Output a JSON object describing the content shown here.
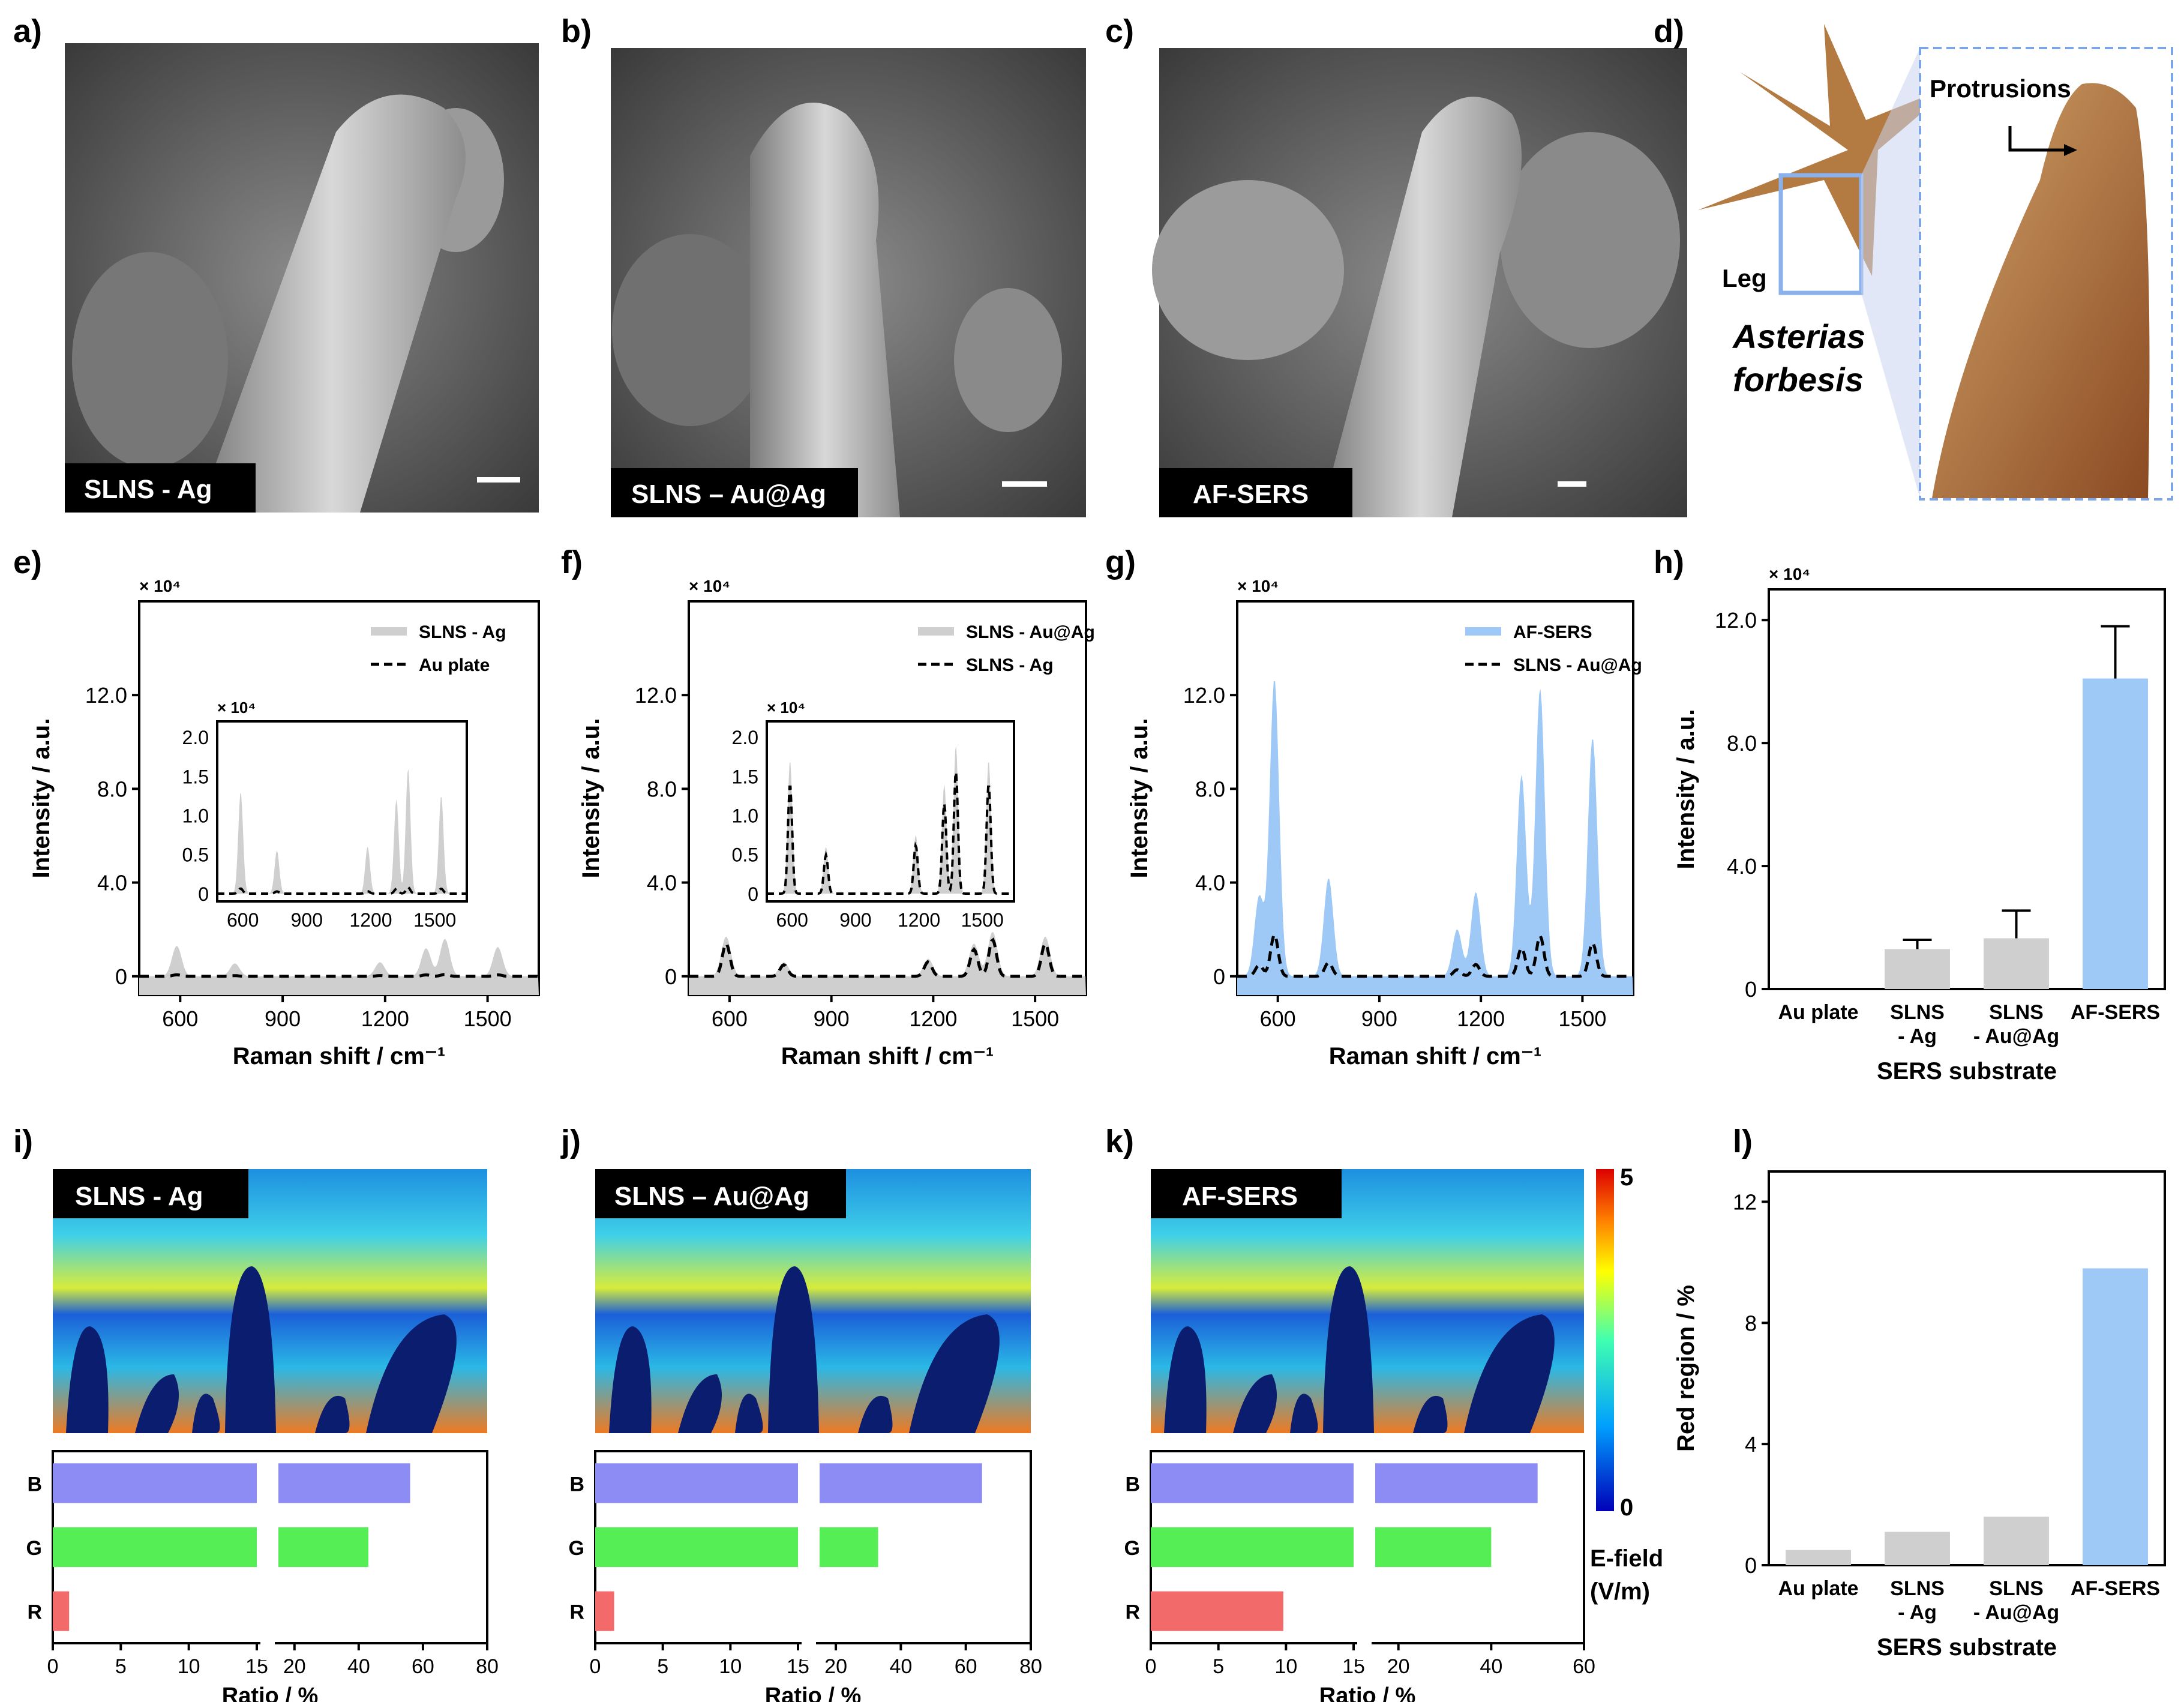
{
  "panel_letters": {
    "a": "a)",
    "b": "b)",
    "c": "c)",
    "d": "d)",
    "e": "e)",
    "f": "f)",
    "g": "g)",
    "h": "h)",
    "i": "i)",
    "j": "j)",
    "k": "k)",
    "l": "l)"
  },
  "sem_labels": {
    "a": "SLNS - Ag",
    "b": "SLNS – Au@Ag",
    "c": "AF-SERS"
  },
  "starfish": {
    "protrusions": "Protrusions",
    "leg": "Leg",
    "species_line1": "Asterias",
    "species_line2": "forbesis"
  },
  "sim_labels": {
    "i": "SLNS - Ag",
    "j": "SLNS – Au@Ag",
    "k": "AF-SERS"
  },
  "colorbar": {
    "max": "5",
    "min": "0",
    "label_line1": "E-field",
    "label_line2": "(V/m)"
  },
  "common": {
    "x10_4": "× 10⁴",
    "intensity_label": "Intensity / a.u.",
    "raman_label": "Raman shift / cm⁻¹",
    "sers_substrate": "SERS substrate",
    "red_region_label": "Red region / %",
    "ratio_label": "Ratio / %"
  },
  "colors": {
    "ag": "#cfcfcf",
    "af": "#9ec9f7",
    "bar_blue": "#8c8cf4",
    "bar_green": "#55ee55",
    "bar_red": "#f26a6a"
  },
  "chart_data": [
    {
      "id": "e",
      "type": "line",
      "xlabel": "Raman shift / cm⁻¹",
      "ylabel": "Intensity / a.u.",
      "ylim": [
        0,
        16
      ],
      "xticks": [
        600,
        900,
        1200,
        1500
      ],
      "yticks": [
        "0",
        "4.0",
        "8.0",
        "12.0"
      ],
      "series": [
        {
          "name": "SLNS - Ag"
        },
        {
          "name": "Au plate"
        }
      ],
      "peaks_main": [
        [
          590,
          1.3
        ],
        [
          760,
          0.55
        ],
        [
          1185,
          0.6
        ],
        [
          1320,
          1.2
        ],
        [
          1375,
          1.6
        ],
        [
          1530,
          1.25
        ]
      ],
      "inset": {
        "yticks": [
          "0",
          "0.5",
          "1.0",
          "1.5",
          "2.0"
        ],
        "xticks": [
          600,
          900,
          1200,
          1500
        ]
      }
    },
    {
      "id": "f",
      "type": "line",
      "xlabel": "Raman shift / cm⁻¹",
      "ylabel": "Intensity / a.u.",
      "ylim": [
        0,
        16
      ],
      "xticks": [
        600,
        900,
        1200,
        1500
      ],
      "yticks": [
        "0",
        "4.0",
        "8.0",
        "12.0"
      ],
      "series": [
        {
          "name": "SLNS - Au@Ag"
        },
        {
          "name": "SLNS - Ag"
        }
      ],
      "peaks_main": [
        [
          590,
          1.7
        ],
        [
          760,
          0.6
        ],
        [
          1185,
          0.75
        ],
        [
          1320,
          1.4
        ],
        [
          1375,
          1.9
        ],
        [
          1530,
          1.7
        ]
      ],
      "inset": {
        "yticks": [
          "0",
          "0.5",
          "1.0",
          "1.5",
          "2.0"
        ],
        "xticks": [
          600,
          900,
          1200,
          1500
        ]
      }
    },
    {
      "id": "g",
      "type": "line",
      "xlabel": "Raman shift / cm⁻¹",
      "ylabel": "Intensity / a.u.",
      "ylim": [
        0,
        16
      ],
      "xticks": [
        600,
        900,
        1200,
        1500
      ],
      "yticks": [
        "0",
        "4.0",
        "8.0",
        "12.0"
      ],
      "series": [
        {
          "name": "AF-SERS"
        },
        {
          "name": "SLNS - Au@Ag"
        }
      ],
      "peaks_main": [
        [
          545,
          3.4
        ],
        [
          590,
          12.7
        ],
        [
          750,
          4.2
        ],
        [
          1130,
          2.0
        ],
        [
          1185,
          3.6
        ],
        [
          1320,
          8.6
        ],
        [
          1375,
          12.3
        ],
        [
          1530,
          10.2
        ]
      ]
    },
    {
      "id": "h",
      "type": "bar",
      "categories": [
        "Au plate",
        "SLNS\n- Ag",
        "SLNS\n- Au@Ag",
        "AF-SERS"
      ],
      "values": [
        0.0,
        1.3,
        1.65,
        10.1
      ],
      "errors": [
        0,
        0.3,
        0.9,
        1.7
      ],
      "xlabel": "SERS substrate",
      "ylabel": "Intensity / a.u.",
      "ylim": [
        0,
        13
      ],
      "yticks": [
        "0",
        "4.0",
        "8.0",
        "12.0"
      ]
    },
    {
      "id": "l",
      "type": "bar",
      "categories": [
        "Au plate",
        "SLNS\n- Ag",
        "SLNS\n- Au@Ag",
        "AF-SERS"
      ],
      "values": [
        0.5,
        1.1,
        1.6,
        9.8
      ],
      "xlabel": "SERS substrate",
      "ylabel": "Red region / %",
      "ylim": [
        0,
        13
      ],
      "yticks": [
        "0",
        "4",
        "8",
        "12"
      ]
    },
    {
      "id": "i",
      "type": "bar",
      "orientation": "horizontal",
      "categories": [
        "B",
        "G",
        "R"
      ],
      "values": [
        56,
        43,
        1.2
      ],
      "xlabel": "Ratio / %",
      "xticks_left": [
        "0",
        "5",
        "10",
        "15"
      ],
      "xticks_right": [
        "20",
        "40",
        "60",
        "80"
      ]
    },
    {
      "id": "j",
      "type": "bar",
      "orientation": "horizontal",
      "categories": [
        "B",
        "G",
        "R"
      ],
      "values": [
        65,
        33,
        1.4
      ],
      "xlabel": "Ratio / %",
      "xticks_left": [
        "0",
        "5",
        "10",
        "15"
      ],
      "xticks_right": [
        "20",
        "40",
        "60",
        "80"
      ]
    },
    {
      "id": "k",
      "type": "bar",
      "orientation": "horizontal",
      "categories": [
        "B",
        "G",
        "R"
      ],
      "values": [
        50,
        40,
        9.8
      ],
      "xlabel": "Ratio / %",
      "xticks_left": [
        "0",
        "5",
        "10",
        "15"
      ],
      "xticks_right": [
        "20",
        "40",
        "60"
      ]
    }
  ]
}
